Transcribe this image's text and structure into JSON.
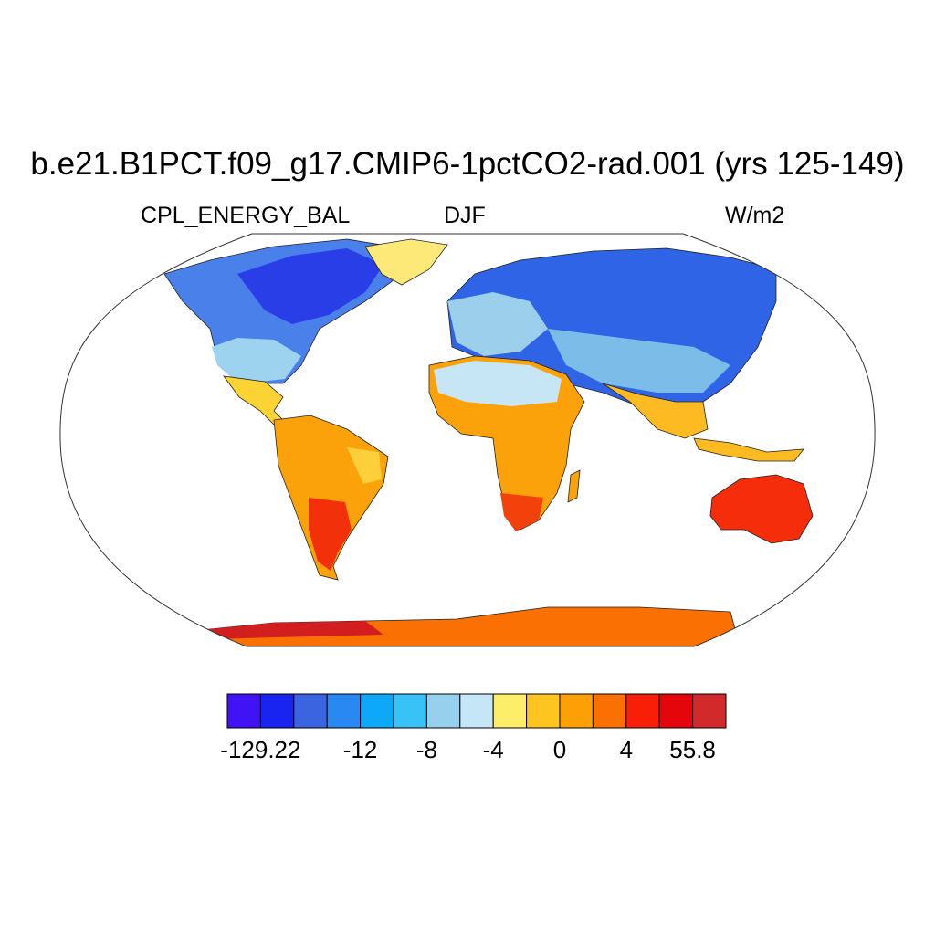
{
  "title": "b.e21.B1PCT.f09_g17.CMIP6-1pctCO2-rad.001 (yrs 125-149)",
  "variable": "CPL_ENERGY_BAL",
  "season": "DJF",
  "units": "W/m2",
  "colorbar": {
    "colors": [
      "#4112f5",
      "#1a24f0",
      "#3a64e0",
      "#2a88f2",
      "#0da8f7",
      "#38c2f5",
      "#97d0ec",
      "#c4e6f6",
      "#fdee6a",
      "#fcc51f",
      "#fca005",
      "#fa7003",
      "#f91e08",
      "#e5060c",
      "#d22a2a"
    ],
    "labels": [
      "-129.22",
      "-12",
      "-8",
      "-4",
      "0",
      "4",
      "55.8"
    ]
  },
  "icons": {
    "coastline": "coastline-shape",
    "projection": "robinson-ellipse"
  }
}
